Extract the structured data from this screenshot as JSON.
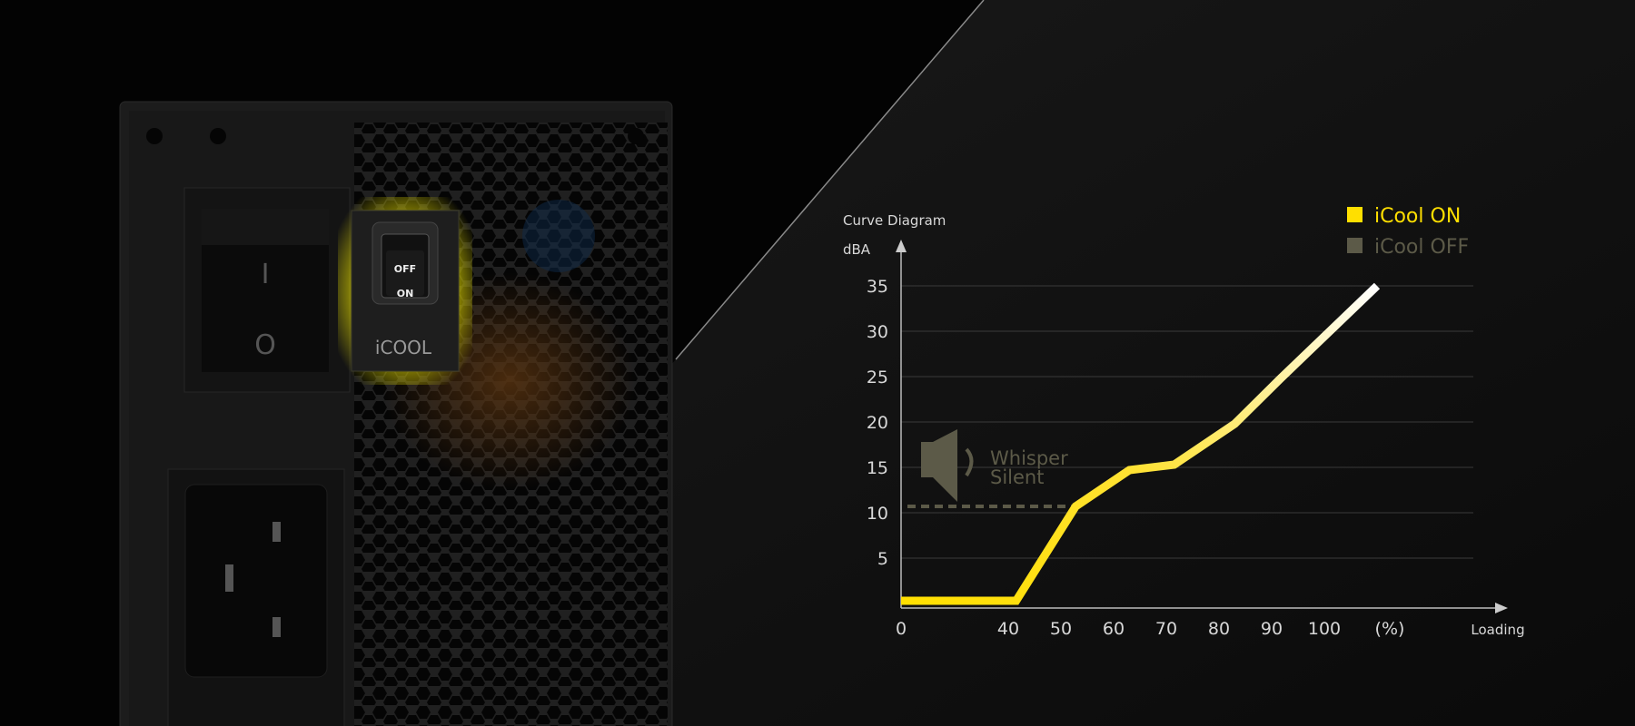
{
  "product": {
    "switch_label": "iCOOL",
    "switch_off": "OFF",
    "switch_on": "ON",
    "power_on_symbol": "I",
    "power_off_symbol": "O"
  },
  "chart_data": {
    "type": "line",
    "title": "Curve Diagram",
    "ylabel": "dBA",
    "xlabel": "Loading",
    "x_unit_label": "(%)",
    "x_ticks": [
      0,
      40,
      50,
      60,
      70,
      80,
      90,
      100
    ],
    "x_tick_labels": [
      "0",
      "40",
      "50",
      "60",
      "70",
      "80",
      "90",
      "100"
    ],
    "y_ticks": [
      5,
      10,
      15,
      20,
      25,
      30,
      35
    ],
    "y_tick_labels": [
      "5",
      "10",
      "15",
      "20",
      "25",
      "30",
      "35"
    ],
    "ylim": [
      0,
      35
    ],
    "grid": true,
    "legend_position": "top-right",
    "legend": [
      {
        "label": "iCool ON",
        "color": "#ffdf00"
      },
      {
        "label": "iCool OFF",
        "color": "#5c5a48"
      }
    ],
    "series": [
      {
        "name": "iCool ON",
        "x": [
          0,
          41.5,
          52.8,
          63,
          71.5,
          83,
          91.7,
          110
        ],
        "y": [
          0.3,
          0.3,
          10.7,
          14.7,
          15.3,
          19.8,
          24.8,
          35
        ],
        "color_start": "#ffdf00",
        "color_end": "#ffffff"
      }
    ],
    "annotation": {
      "line1": "Whisper",
      "line2": "Silent",
      "threshold_dba": 10.7,
      "icon": "speaker-icon",
      "color": "#5c5a48"
    }
  }
}
